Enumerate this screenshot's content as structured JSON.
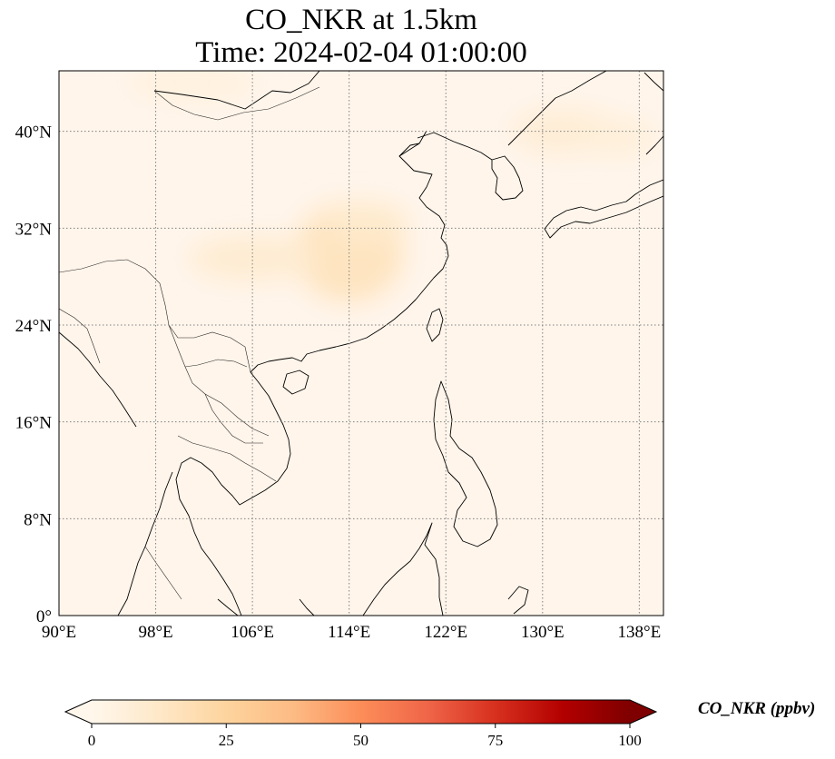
{
  "title": {
    "line1": "CO_NKR at 1.5km",
    "line2": "Time: 2024-02-04 01:00:00"
  },
  "map": {
    "projection": "PlateCarree",
    "lon_range": [
      90,
      140
    ],
    "lat_range": [
      0,
      45
    ],
    "lon_ticks": [
      {
        "value": 90,
        "label": "90°E"
      },
      {
        "value": 98,
        "label": "98°E"
      },
      {
        "value": 106,
        "label": "106°E"
      },
      {
        "value": 114,
        "label": "114°E"
      },
      {
        "value": 122,
        "label": "122°E"
      },
      {
        "value": 130,
        "label": "130°E"
      },
      {
        "value": 138,
        "label": "138°E"
      }
    ],
    "lat_ticks": [
      {
        "value": 0,
        "label": "0°"
      },
      {
        "value": 8,
        "label": "8°N"
      },
      {
        "value": 16,
        "label": "16°N"
      },
      {
        "value": 24,
        "label": "24°N"
      },
      {
        "value": 32,
        "label": "32°N"
      },
      {
        "value": 40,
        "label": "40°N"
      }
    ],
    "gridlines": "dotted",
    "background_color": "#fff5eb",
    "coastline_color": "#000000",
    "concentration_patches": [
      {
        "region": "central-east-china",
        "lon": 114,
        "lat": 30,
        "value": 15
      },
      {
        "region": "sichuan-basin",
        "lon": 106,
        "lat": 29.5,
        "value": 9
      },
      {
        "region": "north-china-plain",
        "lon": 115.5,
        "lat": 32.5,
        "value": 11
      },
      {
        "region": "northeast-china-korea",
        "lon": 132,
        "lat": 40,
        "value": 8
      },
      {
        "region": "japan-sea",
        "lon": 136,
        "lat": 39.5,
        "value": 7
      },
      {
        "region": "mongolia",
        "lon": 101,
        "lat": 44,
        "value": 5
      }
    ]
  },
  "colorbar": {
    "title": "CO_NKR (ppbv)",
    "colormap": "OrRd",
    "range": [
      0,
      100
    ],
    "extend": "both",
    "ticks": [
      {
        "value": 0,
        "label": "0"
      },
      {
        "value": 25,
        "label": "25"
      },
      {
        "value": 50,
        "label": "50"
      },
      {
        "value": 75,
        "label": "75"
      },
      {
        "value": 100,
        "label": "100"
      }
    ],
    "stops": [
      "#fff7ec",
      "#fee8c8",
      "#fdd49e",
      "#fdbb84",
      "#fc8d59",
      "#ef6548",
      "#d7301f",
      "#b30000",
      "#7f0000"
    ]
  }
}
